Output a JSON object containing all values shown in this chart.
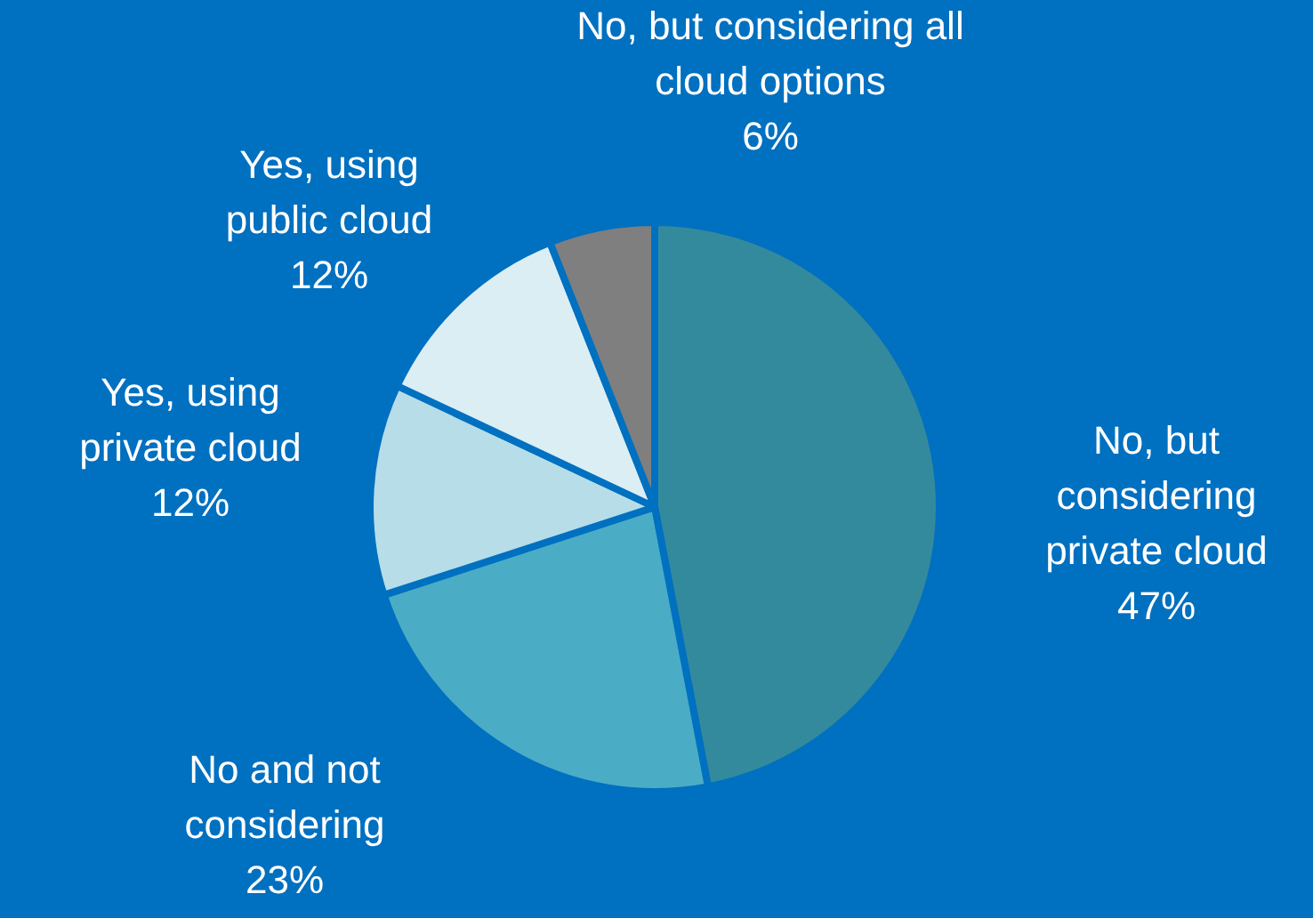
{
  "chart_data": {
    "type": "pie",
    "categories": [
      "No, but considering private cloud",
      "No and not considering",
      "Yes, using private cloud",
      "Yes, using public cloud",
      "No, but considering all cloud options"
    ],
    "values": [
      47,
      23,
      12,
      12,
      6
    ],
    "colors": [
      "#348a9d",
      "#4bacc6",
      "#b7dde8",
      "#dbeef4",
      "#7f7f7f"
    ],
    "value_labels": [
      "47%",
      "23%",
      "12%",
      "12%",
      "6%"
    ]
  }
}
